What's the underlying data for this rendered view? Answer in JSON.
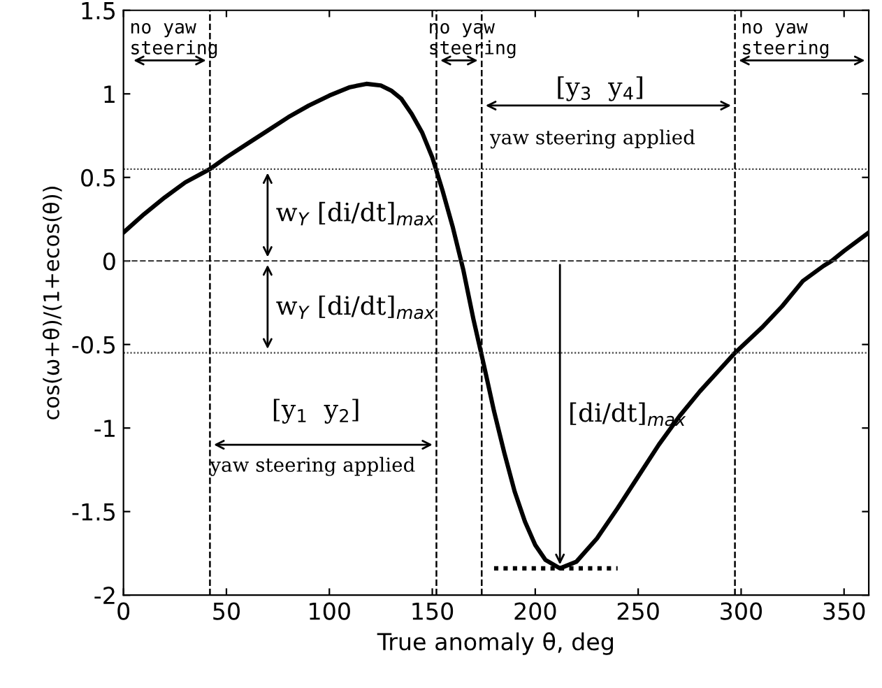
{
  "chart_data": {
    "type": "line",
    "xlabel": "True anomaly θ, deg",
    "ylabel": "cos(ω+θ)/(1+ecos(θ))",
    "xlim": [
      0,
      362
    ],
    "ylim": [
      -2,
      1.5
    ],
    "xticks": [
      0,
      50,
      100,
      150,
      200,
      250,
      300,
      350
    ],
    "yticks": [
      -2,
      -1.5,
      -1,
      -0.5,
      0,
      0.5,
      1,
      1.5
    ],
    "grid": false,
    "series": [
      {
        "color": "#000000",
        "line_style": "solid",
        "x": [
          0,
          10,
          20,
          30,
          42,
          50,
          60,
          70,
          80,
          90,
          100,
          110,
          118,
          125,
          130,
          135,
          140,
          145,
          150,
          155,
          160,
          165,
          170,
          175,
          180,
          185,
          190,
          195,
          200,
          205,
          212,
          220,
          230,
          240,
          250,
          260,
          270,
          280,
          297,
          310,
          320,
          330,
          340,
          344,
          350,
          362
        ],
        "values": [
          0.17,
          0.28,
          0.38,
          0.47,
          0.55,
          0.62,
          0.7,
          0.78,
          0.86,
          0.93,
          0.99,
          1.04,
          1.06,
          1.05,
          1.02,
          0.97,
          0.88,
          0.77,
          0.62,
          0.42,
          0.2,
          -0.05,
          -0.35,
          -0.62,
          -0.9,
          -1.15,
          -1.38,
          -1.56,
          -1.7,
          -1.79,
          -1.84,
          -1.8,
          -1.66,
          -1.48,
          -1.29,
          -1.1,
          -0.93,
          -0.78,
          -0.55,
          -0.4,
          -0.27,
          -0.12,
          -0.03,
          0,
          0.06,
          0.17
        ]
      },
      {
        "color": "#000000",
        "line_style": "dotted",
        "x": [
          180,
          240
        ],
        "values": [
          -1.84,
          -1.84
        ]
      }
    ],
    "ref_lines": [
      {
        "axis": "y",
        "value": 0.55,
        "line_style": "dotted"
      },
      {
        "axis": "y",
        "value": 0,
        "line_style": "dashed"
      },
      {
        "axis": "y",
        "value": -0.55,
        "line_style": "dotted"
      },
      {
        "axis": "x",
        "value": 42,
        "line_style": "dashed"
      },
      {
        "axis": "x",
        "value": 152,
        "line_style": "dashed"
      },
      {
        "axis": "x",
        "value": 174,
        "line_style": "dashed"
      },
      {
        "axis": "x",
        "value": 297,
        "line_style": "dashed"
      }
    ],
    "annotations": [
      "no yaw\nsteering",
      "no yaw\nsteering",
      "no yaw\nsteering",
      "[y$_{3}$  y$_{4}$]",
      "yaw steering applied",
      "w$_{Y}$ [di/dt]$_{max}$",
      "w$_{Y}$ [di/dt]$_{max}$",
      "[y$_{1}$  y$_{2}$]",
      "yaw steering applied",
      "[di/dt]$_{max}$"
    ]
  }
}
